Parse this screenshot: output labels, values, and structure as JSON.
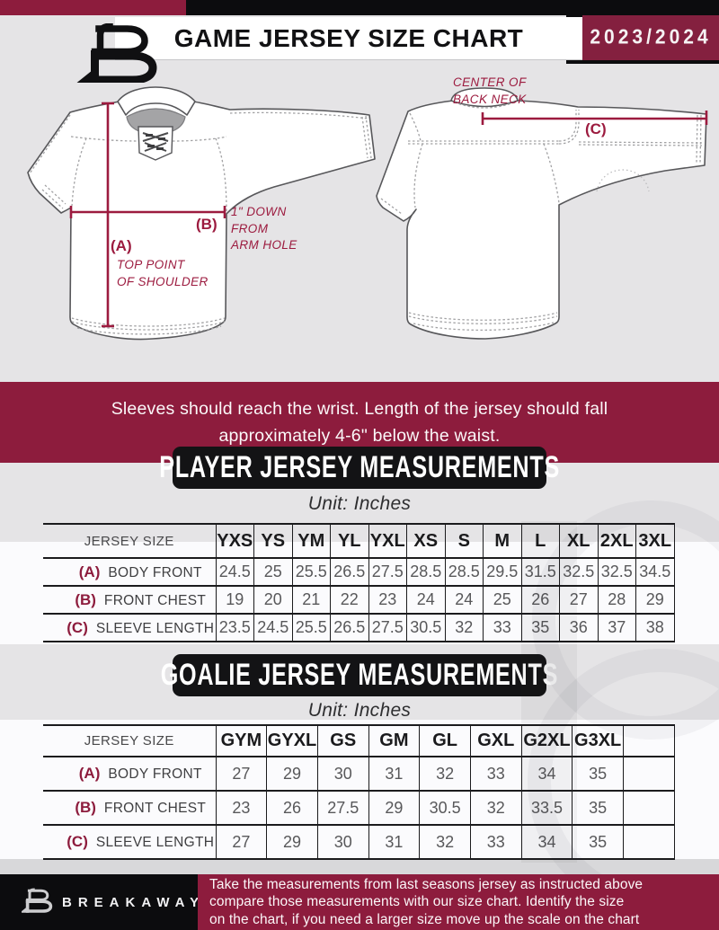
{
  "header": {
    "title": "GAME JERSEY SIZE CHART",
    "season": "2023/2024",
    "logo_icon": "breakaway-b-logo"
  },
  "diagram": {
    "front": {
      "a_tag": "(A)",
      "a_desc1": "TOP POINT",
      "a_desc2": "OF SHOULDER",
      "b_tag": "(B)",
      "b_desc1": "1\" DOWN",
      "b_desc2": "FROM",
      "b_desc3": "ARM HOLE"
    },
    "back": {
      "c_tag": "(C)",
      "c_desc1": "CENTER OF",
      "c_desc2": "BACK NECK"
    }
  },
  "note": {
    "line1": "Sleeves should reach the wrist. Length of the jersey should fall",
    "line2": "approximately 4-6\" below the waist."
  },
  "player_table": {
    "heading": "PLAYER JERSEY MEASUREMENTS",
    "unit": "Unit: Inches",
    "corner_label": "JERSEY SIZE",
    "sizes": [
      "YXS",
      "YS",
      "YM",
      "YL",
      "YXL",
      "XS",
      "S",
      "M",
      "L",
      "XL",
      "2XL",
      "3XL"
    ],
    "rows": [
      {
        "tag": "(A)",
        "label": "BODY FRONT",
        "values": [
          "24.5",
          "25",
          "25.5",
          "26.5",
          "27.5",
          "28.5",
          "28.5",
          "29.5",
          "31.5",
          "32.5",
          "32.5",
          "34.5"
        ]
      },
      {
        "tag": "(B)",
        "label": "FRONT CHEST",
        "values": [
          "19",
          "20",
          "21",
          "22",
          "23",
          "24",
          "24",
          "25",
          "26",
          "27",
          "28",
          "29"
        ]
      },
      {
        "tag": "(C)",
        "label": "SLEEVE LENGTH",
        "values": [
          "23.5",
          "24.5",
          "25.5",
          "26.5",
          "27.5",
          "30.5",
          "32",
          "33",
          "35",
          "36",
          "37",
          "38"
        ]
      }
    ]
  },
  "goalie_table": {
    "heading": "GOALIE JERSEY MEASUREMENTS",
    "unit": "Unit: Inches",
    "corner_label": "JERSEY SIZE",
    "sizes": [
      "GYM",
      "GYXL",
      "GS",
      "GM",
      "GL",
      "GXL",
      "G2XL",
      "G3XL",
      ""
    ],
    "rows": [
      {
        "tag": "(A)",
        "label": "BODY FRONT",
        "values": [
          "27",
          "29",
          "30",
          "31",
          "32",
          "33",
          "34",
          "35",
          ""
        ]
      },
      {
        "tag": "(B)",
        "label": "FRONT CHEST",
        "values": [
          "23",
          "26",
          "27.5",
          "29",
          "30.5",
          "32",
          "33.5",
          "35",
          ""
        ]
      },
      {
        "tag": "(C)",
        "label": "SLEEVE LENGTH",
        "values": [
          "27",
          "29",
          "30",
          "31",
          "32",
          "33",
          "34",
          "35",
          ""
        ]
      }
    ]
  },
  "footer": {
    "brand": "BREAKAWAY",
    "line1": "Take the measurements from last seasons jersey as instructed above",
    "line2": "compare those measurements  with our size chart. Identify the size",
    "line3": "on the chart, if you need a larger size move up the scale on the chart"
  },
  "colors": {
    "maroon": "#8d1c3d",
    "annotation_maroon": "#9c1b3f",
    "black": "#0c0c0e",
    "background": "#e5e4e6",
    "outline_gray": "#57575a"
  }
}
